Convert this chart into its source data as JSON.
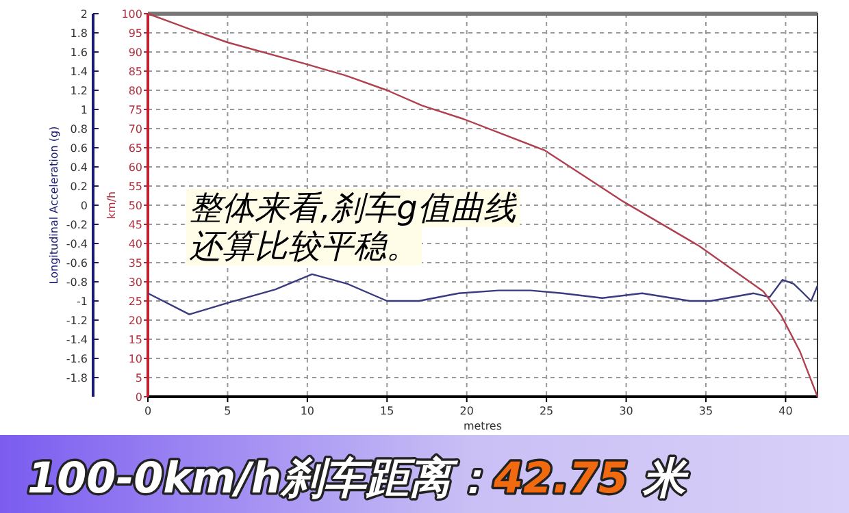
{
  "chart_data": {
    "type": "line",
    "title": "100-0km/h刹车距离：42.75 米",
    "xlabel": "metres",
    "ylabel": "Longitudinal Acceleration (g)",
    "y2label": "km/h",
    "annotations": [
      "整体来看,刹车g值曲线",
      "还算比较平稳。"
    ],
    "xlim": [
      0,
      42
    ],
    "xticks": [
      0,
      5,
      10,
      15,
      20,
      25,
      30,
      35,
      40
    ],
    "ylim": [
      -2,
      2
    ],
    "yticks": [
      -1.8,
      -1.6,
      -1.4,
      -1.2,
      -1,
      -0.8,
      -0.6,
      -0.4,
      -0.2,
      0,
      0.2,
      0.4,
      0.6,
      0.8,
      1,
      1.2,
      1.4,
      1.6,
      1.8,
      2
    ],
    "y2lim": [
      0,
      100
    ],
    "y2ticks": [
      0,
      5,
      10,
      15,
      20,
      25,
      30,
      35,
      40,
      45,
      50,
      55,
      60,
      65,
      70,
      75,
      80,
      85,
      90,
      95,
      100
    ],
    "grid": true,
    "marker": "none",
    "line_style": "solid",
    "series": [
      {
        "color": "#3a3a80",
        "x": [
          0,
          2.6,
          5,
          8,
          10.3,
          12.5,
          15,
          17,
          19.5,
          22,
          24,
          26,
          28.5,
          31,
          34,
          35.3,
          38,
          39,
          39.8,
          40.5,
          41,
          41.6,
          42
        ],
        "values": [
          -0.92,
          -1.14,
          -1.02,
          -0.88,
          -0.72,
          -0.82,
          -1.0,
          -1.0,
          -0.92,
          -0.89,
          -0.89,
          -0.92,
          -0.97,
          -0.92,
          -1.0,
          -1.0,
          -0.92,
          -0.96,
          -0.78,
          -0.82,
          -0.9,
          -1.0,
          -0.84
        ]
      },
      {
        "axis": "y2",
        "color": "#b04050",
        "x": [
          0,
          2.6,
          5,
          9.8,
          12.3,
          15,
          17.2,
          19.8,
          24.9,
          29.8,
          34.6,
          38.6,
          39.7,
          40.9,
          42
        ],
        "values": [
          100,
          96,
          92.5,
          87,
          84,
          80,
          76,
          72.5,
          64.3,
          51,
          39.3,
          27.5,
          21.4,
          11.8,
          0
        ]
      }
    ]
  }
}
